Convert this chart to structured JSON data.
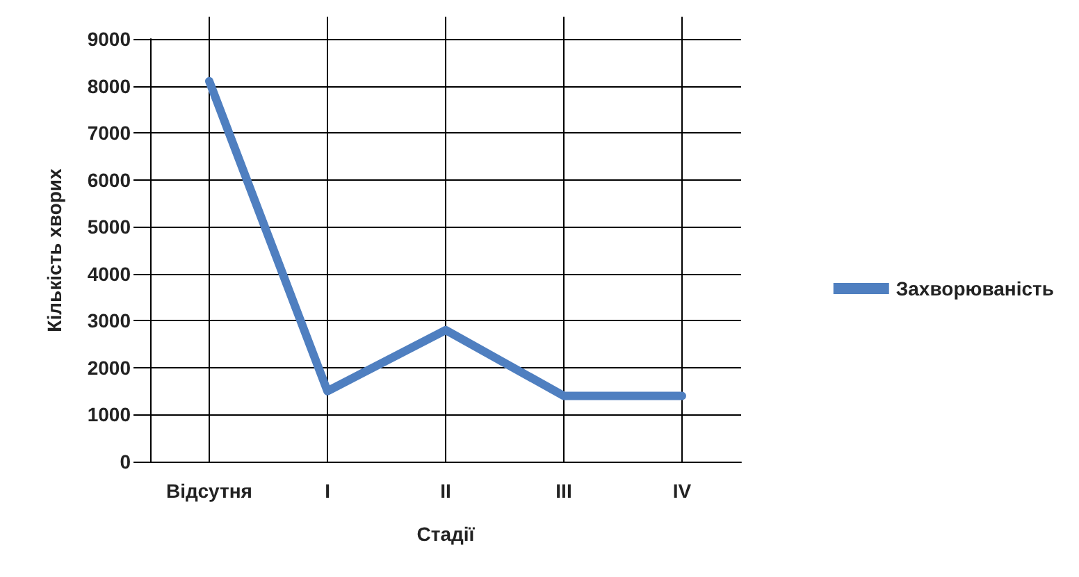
{
  "chart_data": {
    "type": "line",
    "xlabel": "Стадії",
    "ylabel": "Кількість хворих",
    "categories": [
      "Відсутня",
      "I",
      "II",
      "III",
      "IV"
    ],
    "series": [
      {
        "name": "Захворюваність",
        "color": "#4f7fc0",
        "values": [
          8100,
          1500,
          2800,
          1400,
          1400
        ]
      }
    ],
    "ylim": [
      0,
      9000
    ],
    "yticks": [
      0,
      1000,
      2000,
      3000,
      4000,
      5000,
      6000,
      7000,
      8000,
      9000
    ],
    "grid": true,
    "legend": "right",
    "marker": "none",
    "line_style": "solid"
  }
}
